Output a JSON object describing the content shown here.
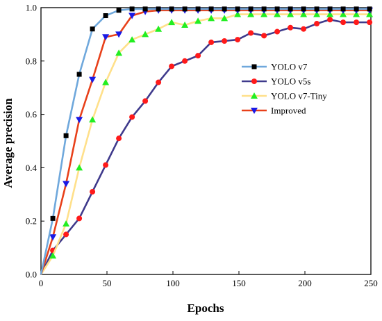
{
  "chart_data": {
    "type": "line",
    "xlabel": "Epochs",
    "ylabel": "Average precision",
    "xlim": [
      0,
      250
    ],
    "ylim": [
      0,
      1.0
    ],
    "x_ticks": [
      "0",
      "50",
      "100",
      "150",
      "200",
      "250"
    ],
    "y_ticks": [
      "0.0",
      "0.2",
      "0.4",
      "0.6",
      "0.8",
      "1.0"
    ],
    "grid": false,
    "legend_position": "right",
    "series": [
      {
        "name": "YOLO v7",
        "line_color": "#6fa8dc",
        "marker": "square",
        "marker_color": "#000000",
        "x": [
          0,
          9,
          19,
          29,
          39,
          49,
          59,
          69,
          79,
          89,
          99,
          109,
          119,
          129,
          139,
          149,
          159,
          169,
          179,
          189,
          199,
          209,
          219,
          229,
          239,
          249
        ],
        "y": [
          0,
          0.21,
          0.52,
          0.75,
          0.92,
          0.97,
          0.99,
          0.995,
          0.995,
          0.995,
          0.995,
          0.995,
          0.995,
          0.995,
          0.995,
          0.995,
          0.995,
          0.995,
          0.995,
          0.995,
          0.995,
          0.995,
          0.995,
          0.995,
          0.995,
          0.995
        ]
      },
      {
        "name": "YOLO v5s",
        "line_color": "#3f3a8c",
        "marker": "circle",
        "marker_color": "#ff1a1a",
        "x": [
          0,
          9,
          19,
          29,
          39,
          49,
          59,
          69,
          79,
          89,
          99,
          109,
          119,
          129,
          139,
          149,
          159,
          169,
          179,
          189,
          199,
          209,
          219,
          229,
          239,
          249
        ],
        "y": [
          0,
          0.09,
          0.15,
          0.21,
          0.31,
          0.41,
          0.51,
          0.59,
          0.65,
          0.72,
          0.78,
          0.8,
          0.82,
          0.87,
          0.875,
          0.88,
          0.905,
          0.895,
          0.91,
          0.925,
          0.92,
          0.94,
          0.955,
          0.945,
          0.945,
          0.945
        ]
      },
      {
        "name": "YOLO v7-Tiny",
        "line_color": "#ffe08a",
        "marker": "triangle-up",
        "marker_color": "#22ee22",
        "x": [
          0,
          9,
          19,
          29,
          39,
          49,
          59,
          69,
          79,
          89,
          99,
          109,
          119,
          129,
          139,
          149,
          159,
          169,
          179,
          189,
          199,
          209,
          219,
          229,
          239,
          249
        ],
        "y": [
          0,
          0.07,
          0.19,
          0.4,
          0.58,
          0.72,
          0.83,
          0.88,
          0.9,
          0.92,
          0.945,
          0.935,
          0.95,
          0.96,
          0.96,
          0.975,
          0.975,
          0.975,
          0.975,
          0.975,
          0.975,
          0.975,
          0.975,
          0.975,
          0.975,
          0.975
        ]
      },
      {
        "name": "Improved",
        "line_color": "#e8401a",
        "marker": "triangle-down",
        "marker_color": "#1a1ae6",
        "x": [
          0,
          9,
          19,
          29,
          39,
          49,
          59,
          69,
          79,
          89,
          99,
          109,
          119,
          129,
          139,
          149,
          159,
          169,
          179,
          189,
          199,
          209,
          219,
          229,
          239,
          249
        ],
        "y": [
          0,
          0.14,
          0.34,
          0.58,
          0.73,
          0.89,
          0.9,
          0.97,
          0.985,
          0.99,
          0.99,
          0.99,
          0.99,
          0.99,
          0.99,
          0.99,
          0.99,
          0.99,
          0.99,
          0.99,
          0.99,
          0.99,
          0.99,
          0.99,
          0.99,
          0.99
        ]
      }
    ]
  }
}
